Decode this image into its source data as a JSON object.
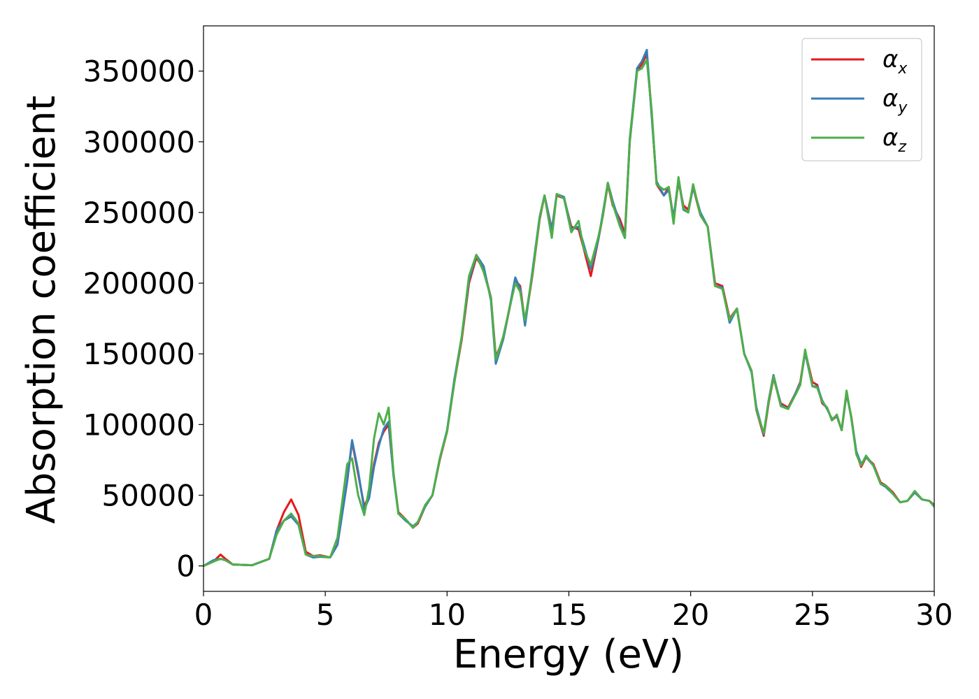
{
  "chart_data": {
    "type": "line",
    "title": "",
    "xlabel": "Energy (eV)",
    "ylabel": "Absorption coefficient",
    "xlim": [
      0,
      30
    ],
    "ylim": [
      -18000,
      382000
    ],
    "xticks": [
      0,
      5,
      10,
      15,
      20,
      25,
      30
    ],
    "xtick_labels": [
      "0",
      "5",
      "10",
      "15",
      "20",
      "25",
      "30"
    ],
    "yticks": [
      0,
      50000,
      100000,
      150000,
      200000,
      250000,
      300000,
      350000
    ],
    "ytick_labels": [
      "0",
      "50000",
      "100000",
      "150000",
      "200000",
      "250000",
      "300000",
      "350000"
    ],
    "grid": false,
    "legend_position": "top-right",
    "x": [
      0,
      0.4,
      0.7,
      0.9,
      1.2,
      2.0,
      2.7,
      3.0,
      3.3,
      3.6,
      3.9,
      4.2,
      4.5,
      4.8,
      5.2,
      5.5,
      5.9,
      6.1,
      6.35,
      6.6,
      6.8,
      7.0,
      7.2,
      7.4,
      7.6,
      7.8,
      8.0,
      8.3,
      8.6,
      8.8,
      9.1,
      9.4,
      9.7,
      10.0,
      10.3,
      10.6,
      10.9,
      11.2,
      11.5,
      11.8,
      12.0,
      12.3,
      12.6,
      12.8,
      13.0,
      13.2,
      13.5,
      13.8,
      14.0,
      14.3,
      14.5,
      14.8,
      15.1,
      15.4,
      15.6,
      15.9,
      16.2,
      16.4,
      16.6,
      16.8,
      17.1,
      17.3,
      17.5,
      17.8,
      18.0,
      18.2,
      18.4,
      18.6,
      18.9,
      19.1,
      19.3,
      19.5,
      19.7,
      19.9,
      20.1,
      20.4,
      20.7,
      21.0,
      21.3,
      21.6,
      21.9,
      22.2,
      22.5,
      22.7,
      23.0,
      23.2,
      23.4,
      23.7,
      24.0,
      24.3,
      24.5,
      24.7,
      25.0,
      25.2,
      25.4,
      25.6,
      25.8,
      26.0,
      26.2,
      26.4,
      26.6,
      26.8,
      27.0,
      27.2,
      27.5,
      27.8,
      28.0,
      28.3,
      28.6,
      28.9,
      29.2,
      29.5,
      29.8,
      30.0
    ],
    "series": [
      {
        "name": "αx",
        "color": "#e41a1c",
        "values": [
          0,
          3000,
          8000,
          5000,
          1000,
          500,
          5000,
          25000,
          38000,
          47000,
          36000,
          10000,
          7000,
          7500,
          6000,
          15000,
          60000,
          88000,
          65000,
          42000,
          50000,
          72000,
          87000,
          95000,
          100000,
          65000,
          38000,
          33000,
          27000,
          30000,
          42000,
          50000,
          75000,
          95000,
          130000,
          160000,
          200000,
          218000,
          210000,
          190000,
          148000,
          160000,
          185000,
          202000,
          198000,
          172000,
          205000,
          245000,
          262000,
          238000,
          262000,
          260000,
          240000,
          238000,
          225000,
          205000,
          230000,
          248000,
          270000,
          255000,
          245000,
          235000,
          300000,
          350000,
          355000,
          362000,
          320000,
          270000,
          262000,
          268000,
          245000,
          272000,
          255000,
          252000,
          268000,
          248000,
          240000,
          200000,
          198000,
          175000,
          182000,
          150000,
          138000,
          110000,
          92000,
          115000,
          133000,
          115000,
          112000,
          122000,
          130000,
          152000,
          130000,
          128000,
          115000,
          112000,
          103000,
          106000,
          96000,
          122000,
          105000,
          80000,
          70000,
          77000,
          72000,
          59000,
          57000,
          52000,
          45000,
          46000,
          52000,
          47000,
          46000,
          43000
        ]
      },
      {
        "name": "αy",
        "color": "#377eb8",
        "values": [
          0,
          4000,
          5000,
          4000,
          1000,
          500,
          5000,
          25000,
          32000,
          35000,
          29000,
          8000,
          6000,
          6500,
          6000,
          15000,
          60000,
          89000,
          67000,
          40000,
          48000,
          70000,
          85000,
          97000,
          102000,
          64000,
          37000,
          32000,
          28000,
          31000,
          42000,
          50000,
          76000,
          96000,
          132000,
          162000,
          202000,
          220000,
          212000,
          188000,
          143000,
          160000,
          186000,
          204000,
          196000,
          170000,
          208000,
          247000,
          262000,
          237000,
          263000,
          261000,
          238000,
          240000,
          228000,
          210000,
          230000,
          250000,
          271000,
          258000,
          242000,
          232000,
          302000,
          352000,
          357000,
          365000,
          318000,
          272000,
          262000,
          266000,
          246000,
          274000,
          252000,
          250000,
          268000,
          250000,
          240000,
          198000,
          197000,
          172000,
          182000,
          150000,
          137000,
          112000,
          93000,
          117000,
          135000,
          114000,
          111000,
          122000,
          129000,
          151000,
          127000,
          127000,
          117000,
          111000,
          104000,
          106000,
          96000,
          123000,
          104000,
          81000,
          72000,
          77000,
          71000,
          58000,
          56000,
          51000,
          45000,
          46000,
          52000,
          47000,
          46000,
          42000
        ]
      },
      {
        "name": "αz",
        "color": "#4daf4a",
        "values": [
          0,
          3000,
          5000,
          4000,
          1000,
          500,
          5000,
          22000,
          32000,
          37000,
          30000,
          8000,
          7000,
          7000,
          6000,
          20000,
          72000,
          76000,
          50000,
          36000,
          55000,
          90000,
          108000,
          100000,
          112000,
          66000,
          37000,
          33000,
          27000,
          31000,
          43000,
          50000,
          76000,
          95000,
          130000,
          162000,
          205000,
          220000,
          208000,
          190000,
          146000,
          162000,
          185000,
          200000,
          194000,
          174000,
          206000,
          246000,
          262000,
          232000,
          263000,
          260000,
          236000,
          244000,
          225000,
          213000,
          232000,
          248000,
          271000,
          256000,
          240000,
          232000,
          300000,
          350000,
          352000,
          358000,
          322000,
          270000,
          266000,
          268000,
          242000,
          275000,
          253000,
          250000,
          270000,
          248000,
          240000,
          198000,
          196000,
          174000,
          182000,
          150000,
          138000,
          110000,
          94000,
          116000,
          134000,
          113000,
          111000,
          121000,
          128000,
          153000,
          127000,
          126000,
          116000,
          112000,
          103000,
          107000,
          96000,
          124000,
          104000,
          79000,
          71000,
          78000,
          71000,
          58000,
          57000,
          51000,
          45000,
          46000,
          53000,
          47000,
          46000,
          42000
        ]
      }
    ]
  },
  "legend": {
    "entries": [
      {
        "symbol": "α",
        "sub": "x",
        "color": "#e41a1c"
      },
      {
        "symbol": "α",
        "sub": "y",
        "color": "#377eb8"
      },
      {
        "symbol": "α",
        "sub": "z",
        "color": "#4daf4a"
      }
    ]
  }
}
